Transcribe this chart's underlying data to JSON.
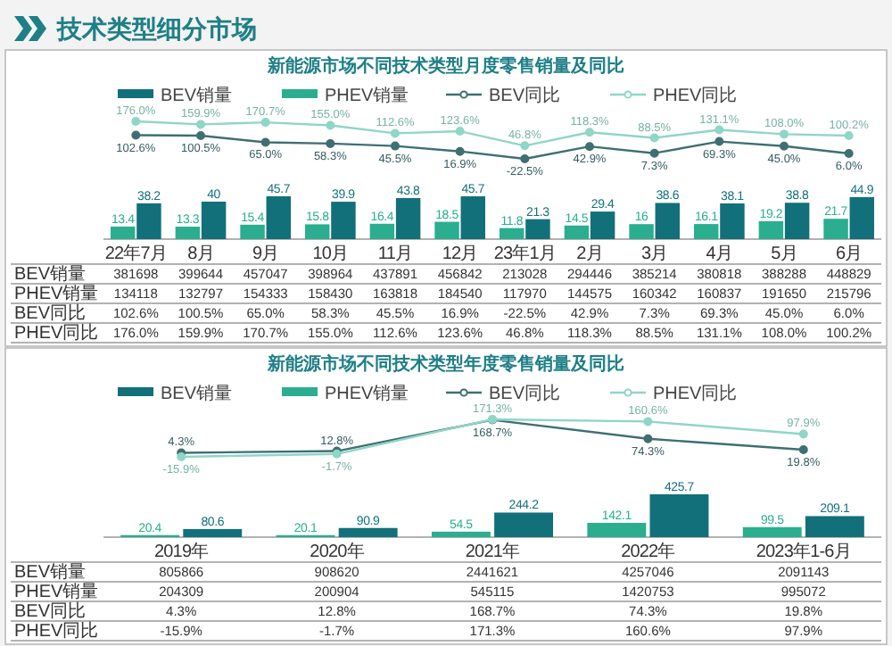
{
  "chart_data": [
    {
      "type": "other",
      "title": "技术类型细分市场"
    },
    {
      "type": "bar",
      "legend": "top",
      "data_labels": true,
      "categories": [
        "22年7月",
        "8月",
        "9月",
        "10月",
        "11月",
        "12月",
        "23年1月",
        "2月",
        "3月",
        "4月",
        "5月",
        "6月"
      ],
      "series": [
        {
          "name": "BEV销量",
          "color": "#12707a",
          "values": [
            38.2,
            40.0,
            45.7,
            39.9,
            43.8,
            45.7,
            21.3,
            29.4,
            38.6,
            38.1,
            38.8,
            44.9
          ]
        },
        {
          "name": "PHEV销量",
          "color": "#2aae8f",
          "values": [
            13.4,
            13.3,
            15.4,
            15.8,
            16.4,
            18.5,
            11.8,
            14.5,
            16.0,
            16.1,
            19.2,
            21.7
          ]
        }
      ],
      "annotations": [
        "381698",
        "399644",
        "457047",
        "398964",
        "437891",
        "456842",
        "213028",
        "294446",
        "385214",
        "380818",
        "388288",
        "448829",
        "134118",
        "132797",
        "154333",
        "158430",
        "163818",
        "184540",
        "117970",
        "144575",
        "160342",
        "160837",
        "191650",
        "215796"
      ]
    },
    {
      "type": "line",
      "title": "新能源市场不同技术类型月度零售销量及同比",
      "legend": "top",
      "marker": "circle",
      "data_labels": true,
      "categories": [
        null,
        null,
        null,
        null,
        null,
        null,
        null,
        null,
        null,
        null,
        null,
        null
      ],
      "series": [
        {
          "name": "BEV同比",
          "color": "#3f6f73",
          "values": [
            102.6,
            100.5,
            65.0,
            58.3,
            45.5,
            16.9,
            -22.5,
            42.9,
            7.3,
            69.3,
            45.0,
            6.0
          ],
          "value_labels": [
            "102.6%",
            "100.5%",
            "65.0%",
            "58.3%",
            "45.5%",
            "16.9%",
            "-22.5%",
            "42.9%",
            "7.3%",
            "69.3%",
            "45.0%",
            "6.0%"
          ]
        },
        {
          "name": "PHEV同比",
          "color": "#8fd6c6",
          "values": [
            176.0,
            159.9,
            170.7,
            155.0,
            112.6,
            123.6,
            46.8,
            118.3,
            88.5,
            131.1,
            108.0,
            100.2
          ],
          "value_labels": [
            "176.0%",
            "159.9%",
            "170.7%",
            "155.0%",
            "112.6%",
            "123.6%",
            "46.8%",
            "118.3%",
            "88.5%",
            "131.1%",
            "108.0%",
            "100.2%"
          ]
        }
      ]
    },
    {
      "type": "bar",
      "legend": "top",
      "data_labels": true,
      "categories": [
        "2019年",
        "2020年",
        "2021年",
        "2022年",
        "2023年1-6月"
      ],
      "series": [
        {
          "name": "BEV销量",
          "color": "#12707a",
          "values": [
            80.6,
            90.9,
            244.2,
            425.7,
            209.1
          ]
        },
        {
          "name": "PHEV销量",
          "color": "#2aae8f",
          "values": [
            20.4,
            20.1,
            54.5,
            142.1,
            99.5
          ]
        }
      ],
      "annotations": [
        "805866",
        "908620",
        "2441621",
        "4257046",
        "2091143",
        "204309",
        "200904",
        "545115",
        "1420753",
        "995072"
      ]
    },
    {
      "type": "line",
      "title": "新能源市场不同技术类型年度零售销量及同比",
      "legend": "top",
      "marker": "circle",
      "data_labels": true,
      "categories": [
        null,
        null,
        null,
        null,
        null
      ],
      "series": [
        {
          "name": "BEV同比",
          "color": "#3f6f73",
          "values": [
            4.3,
            12.8,
            168.7,
            74.3,
            19.8
          ],
          "value_labels": [
            "4.3%",
            "12.8%",
            "168.7%",
            "74.3%",
            "19.8%"
          ]
        },
        {
          "name": "PHEV同比",
          "color": "#8fd6c6",
          "values": [
            -15.9,
            -1.7,
            171.3,
            160.6,
            97.9
          ],
          "value_labels": [
            "-15.9%",
            "-1.7%",
            "171.3%",
            "160.6%",
            "97.9%"
          ]
        }
      ]
    }
  ]
}
